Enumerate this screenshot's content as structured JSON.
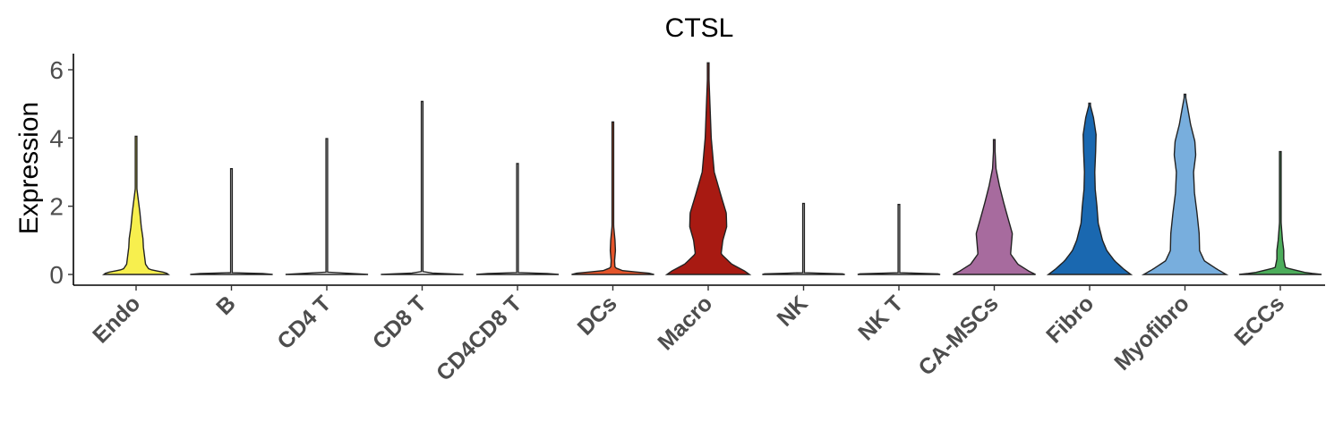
{
  "chart_data": {
    "type": "violin",
    "title": "CTSL",
    "xlabel": "",
    "ylabel": "Expression",
    "ylim": [
      0,
      6.5
    ],
    "yticks": [
      0,
      2,
      4,
      6
    ],
    "grid": false,
    "legend": "none",
    "categories": [
      "Endo",
      "B",
      "CD4 T",
      "CD8 T",
      "CD4CD8 T",
      "DCs",
      "Macro",
      "NK",
      "NK T",
      "CA-MSCs",
      "Fibro",
      "Myofibro",
      "ECCs"
    ],
    "series": [
      {
        "category": "Endo",
        "color": "#F7EF4E",
        "max": 4.05,
        "profile": [
          [
            0,
            0.75
          ],
          [
            0.05,
            0.7
          ],
          [
            0.15,
            0.3
          ],
          [
            0.3,
            0.22
          ],
          [
            0.5,
            0.2
          ],
          [
            0.8,
            0.17
          ],
          [
            1.05,
            0.16
          ],
          [
            1.4,
            0.12
          ],
          [
            1.8,
            0.09
          ],
          [
            2.1,
            0.06
          ],
          [
            2.5,
            0.02
          ],
          [
            3.0,
            0.008
          ],
          [
            4.05,
            0.004
          ]
        ]
      },
      {
        "category": "B",
        "color": "#FFFFFF",
        "max": 3.1,
        "profile": [
          [
            0,
            0.96
          ],
          [
            0.02,
            0.9
          ],
          [
            0.05,
            0.006
          ],
          [
            3.1,
            0.004
          ]
        ]
      },
      {
        "category": "CD4 T",
        "color": "#FFFFFF",
        "max": 3.98,
        "profile": [
          [
            0,
            0.96
          ],
          [
            0.02,
            0.9
          ],
          [
            0.05,
            0.006
          ],
          [
            3.98,
            0.004
          ]
        ]
      },
      {
        "category": "CD8 T",
        "color": "#FFFFFF",
        "max": 5.07,
        "profile": [
          [
            0,
            0.96
          ],
          [
            0.02,
            0.9
          ],
          [
            0.05,
            0.006
          ],
          [
            5.07,
            0.004
          ]
        ]
      },
      {
        "category": "CD4CD8 T",
        "color": "#FFFFFF",
        "max": 3.25,
        "profile": [
          [
            0,
            0.96
          ],
          [
            0.02,
            0.9
          ],
          [
            0.05,
            0.006
          ],
          [
            3.25,
            0.004
          ]
        ]
      },
      {
        "category": "DCs",
        "color": "#E4542A",
        "max": 4.47,
        "profile": [
          [
            0,
            0.96
          ],
          [
            0.05,
            0.8
          ],
          [
            0.1,
            0.25
          ],
          [
            0.2,
            0.05
          ],
          [
            0.4,
            0.04
          ],
          [
            0.7,
            0.06
          ],
          [
            1.0,
            0.05
          ],
          [
            1.4,
            0.02
          ],
          [
            2.0,
            0.008
          ],
          [
            4.47,
            0.004
          ]
        ]
      },
      {
        "category": "Macro",
        "color": "#A81A12",
        "max": 6.2,
        "profile": [
          [
            0,
            0.96
          ],
          [
            0.1,
            0.85
          ],
          [
            0.3,
            0.55
          ],
          [
            0.6,
            0.3
          ],
          [
            1.0,
            0.34
          ],
          [
            1.4,
            0.43
          ],
          [
            1.8,
            0.42
          ],
          [
            2.3,
            0.3
          ],
          [
            3.0,
            0.14
          ],
          [
            4.0,
            0.07
          ],
          [
            5.0,
            0.04
          ],
          [
            6.2,
            0.004
          ]
        ]
      },
      {
        "category": "NK",
        "color": "#FFFFFF",
        "max": 2.08,
        "profile": [
          [
            0,
            0.96
          ],
          [
            0.02,
            0.9
          ],
          [
            0.05,
            0.006
          ],
          [
            2.08,
            0.004
          ]
        ]
      },
      {
        "category": "NK T",
        "color": "#FFFFFF",
        "max": 2.05,
        "profile": [
          [
            0,
            0.96
          ],
          [
            0.02,
            0.9
          ],
          [
            0.05,
            0.006
          ],
          [
            2.05,
            0.004
          ]
        ]
      },
      {
        "category": "CA-MSCs",
        "color": "#A76B9E",
        "max": 3.95,
        "profile": [
          [
            0,
            0.96
          ],
          [
            0.1,
            0.8
          ],
          [
            0.3,
            0.55
          ],
          [
            0.6,
            0.38
          ],
          [
            0.9,
            0.4
          ],
          [
            1.2,
            0.42
          ],
          [
            1.6,
            0.33
          ],
          [
            2.1,
            0.22
          ],
          [
            2.6,
            0.12
          ],
          [
            3.1,
            0.04
          ],
          [
            3.95,
            0.004
          ]
        ]
      },
      {
        "category": "Fibro",
        "color": "#1A68B0",
        "max": 5.02,
        "profile": [
          [
            0,
            0.96
          ],
          [
            0.15,
            0.8
          ],
          [
            0.4,
            0.58
          ],
          [
            0.7,
            0.4
          ],
          [
            1.0,
            0.3
          ],
          [
            1.5,
            0.2
          ],
          [
            2.0,
            0.17
          ],
          [
            2.5,
            0.13
          ],
          [
            3.0,
            0.12
          ],
          [
            3.6,
            0.14
          ],
          [
            4.1,
            0.15
          ],
          [
            4.6,
            0.09
          ],
          [
            5.02,
            0.004
          ]
        ]
      },
      {
        "category": "Myofibro",
        "color": "#78AEDD",
        "max": 5.28,
        "profile": [
          [
            0,
            0.96
          ],
          [
            0.15,
            0.75
          ],
          [
            0.4,
            0.45
          ],
          [
            0.7,
            0.34
          ],
          [
            1.2,
            0.33
          ],
          [
            1.8,
            0.28
          ],
          [
            2.4,
            0.22
          ],
          [
            3.0,
            0.2
          ],
          [
            3.5,
            0.25
          ],
          [
            3.9,
            0.23
          ],
          [
            4.4,
            0.13
          ],
          [
            4.9,
            0.06
          ],
          [
            5.28,
            0.004
          ]
        ]
      },
      {
        "category": "ECCs",
        "color": "#4CAD5B",
        "max": 3.6,
        "profile": [
          [
            0,
            0.96
          ],
          [
            0.05,
            0.6
          ],
          [
            0.2,
            0.12
          ],
          [
            0.45,
            0.08
          ],
          [
            0.7,
            0.08
          ],
          [
            1.0,
            0.05
          ],
          [
            1.5,
            0.02
          ],
          [
            2.0,
            0.008
          ],
          [
            3.6,
            0.004
          ]
        ]
      }
    ]
  }
}
